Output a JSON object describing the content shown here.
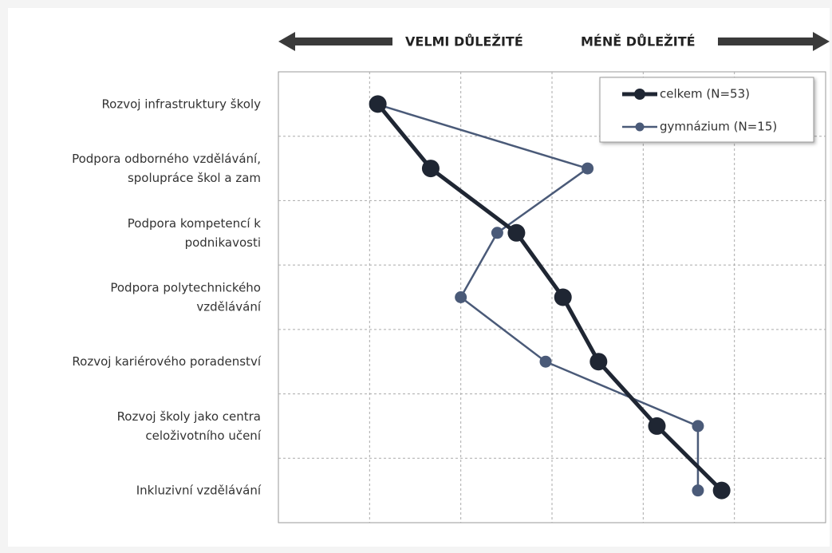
{
  "chart_data": {
    "type": "line",
    "header_left": "VELMI DŮLEŽITÉ",
    "header_right": "MÉNĚ DŮLEŽITÉ",
    "categories": [
      [
        "Rozvoj infrastruktury školy"
      ],
      [
        "Podpora odborného vzdělávání,",
        "spolupráce škol a zam"
      ],
      [
        "Podpora kompetencí k",
        "podnikavosti"
      ],
      [
        "Podpora polytechnického",
        "vzdělávání"
      ],
      [
        "Rozvoj kariérového poradenství"
      ],
      [
        "Rozvoj školy jako centra",
        "celoživotního učení"
      ],
      [
        "Inkluzivní vzdělávání"
      ]
    ],
    "series": [
      {
        "name": "celkem (N=53)",
        "color": "#1f2633",
        "values": [
          1.09,
          1.67,
          2.61,
          3.12,
          3.51,
          4.15,
          4.86
        ]
      },
      {
        "name": "gymnázium (N=15)",
        "color": "#4a5a78",
        "values": [
          1.07,
          3.39,
          2.4,
          2.0,
          2.93,
          4.6,
          4.6
        ]
      }
    ],
    "xlim": [
      0,
      6
    ],
    "xticks": [
      1,
      2,
      3,
      4,
      5
    ],
    "grid": true,
    "legend": "upper right"
  }
}
